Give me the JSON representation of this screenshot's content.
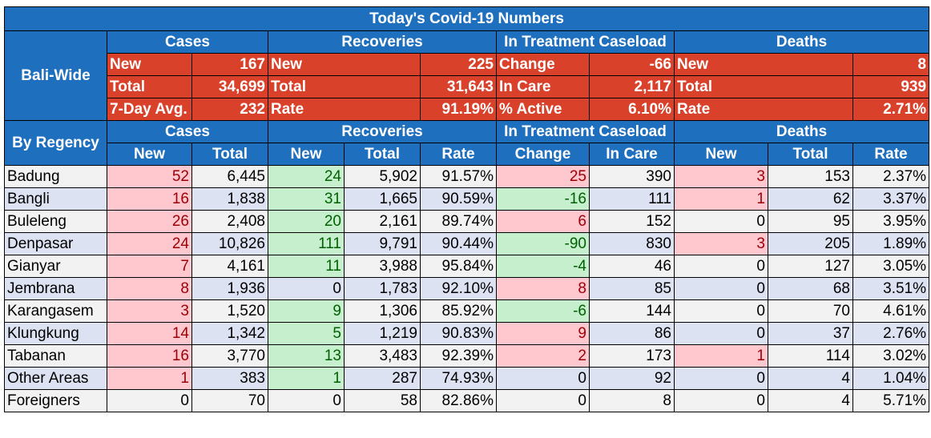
{
  "title": "Today's Covid-19 Numbers",
  "groups": {
    "cases": "Cases",
    "recoveries": "Recoveries",
    "treatment": "In Treatment Caseload",
    "deaths": "Deaths"
  },
  "bali_wide": {
    "label": "Bali-Wide",
    "rows": [
      {
        "c_lbl": "New",
        "c_val": "167",
        "r_lbl": "New",
        "r_val": "225",
        "t_lbl": "Change",
        "t_val": "-66",
        "d_lbl": "New",
        "d_val": "8"
      },
      {
        "c_lbl": "Total",
        "c_val": "34,699",
        "r_lbl": "Total",
        "r_val": "31,643",
        "t_lbl": "In Care",
        "t_val": "2,117",
        "d_lbl": "Total",
        "d_val": "939"
      },
      {
        "c_lbl": "7-Day Avg.",
        "c_val": "232",
        "r_lbl": "Rate",
        "r_val": "91.19%",
        "t_lbl": "% Active",
        "t_val": "6.10%",
        "d_lbl": "Rate",
        "d_val": "2.71%"
      }
    ]
  },
  "by_regency": {
    "label": "By Regency",
    "subheaders": {
      "c_new": "New",
      "c_total": "Total",
      "r_new": "New",
      "r_total": "Total",
      "r_rate": "Rate",
      "t_change": "Change",
      "t_incare": "In Care",
      "d_new": "New",
      "d_total": "Total",
      "d_rate": "Rate"
    },
    "rows": [
      {
        "name": "Badung",
        "c_new": "52",
        "c_total": "6,445",
        "r_new": "24",
        "r_total": "5,902",
        "r_rate": "91.57%",
        "t_change": "25",
        "t_incare": "390",
        "d_new": "3",
        "d_total": "153",
        "d_rate": "2.37%"
      },
      {
        "name": "Bangli",
        "c_new": "16",
        "c_total": "1,838",
        "r_new": "31",
        "r_total": "1,665",
        "r_rate": "90.59%",
        "t_change": "-16",
        "t_incare": "111",
        "d_new": "1",
        "d_total": "62",
        "d_rate": "3.37%"
      },
      {
        "name": "Buleleng",
        "c_new": "26",
        "c_total": "2,408",
        "r_new": "20",
        "r_total": "2,161",
        "r_rate": "89.74%",
        "t_change": "6",
        "t_incare": "152",
        "d_new": "0",
        "d_total": "95",
        "d_rate": "3.95%"
      },
      {
        "name": "Denpasar",
        "c_new": "24",
        "c_total": "10,826",
        "r_new": "111",
        "r_total": "9,791",
        "r_rate": "90.44%",
        "t_change": "-90",
        "t_incare": "830",
        "d_new": "3",
        "d_total": "205",
        "d_rate": "1.89%"
      },
      {
        "name": "Gianyar",
        "c_new": "7",
        "c_total": "4,161",
        "r_new": "11",
        "r_total": "3,988",
        "r_rate": "95.84%",
        "t_change": "-4",
        "t_incare": "46",
        "d_new": "0",
        "d_total": "127",
        "d_rate": "3.05%"
      },
      {
        "name": "Jembrana",
        "c_new": "8",
        "c_total": "1,936",
        "r_new": "0",
        "r_total": "1,783",
        "r_rate": "92.10%",
        "t_change": "8",
        "t_incare": "85",
        "d_new": "0",
        "d_total": "68",
        "d_rate": "3.51%"
      },
      {
        "name": "Karangasem",
        "c_new": "3",
        "c_total": "1,520",
        "r_new": "9",
        "r_total": "1,306",
        "r_rate": "85.92%",
        "t_change": "-6",
        "t_incare": "144",
        "d_new": "0",
        "d_total": "70",
        "d_rate": "4.61%"
      },
      {
        "name": "Klungkung",
        "c_new": "14",
        "c_total": "1,342",
        "r_new": "5",
        "r_total": "1,219",
        "r_rate": "90.83%",
        "t_change": "9",
        "t_incare": "86",
        "d_new": "0",
        "d_total": "37",
        "d_rate": "2.76%"
      },
      {
        "name": "Tabanan",
        "c_new": "16",
        "c_total": "3,770",
        "r_new": "13",
        "r_total": "3,483",
        "r_rate": "92.39%",
        "t_change": "2",
        "t_incare": "173",
        "d_new": "1",
        "d_total": "114",
        "d_rate": "3.02%"
      },
      {
        "name": "Other Areas",
        "c_new": "1",
        "c_total": "383",
        "r_new": "1",
        "r_total": "287",
        "r_rate": "74.93%",
        "t_change": "0",
        "t_incare": "92",
        "d_new": "0",
        "d_total": "4",
        "d_rate": "1.04%"
      },
      {
        "name": "Foreigners",
        "c_new": "0",
        "c_total": "70",
        "r_new": "0",
        "r_total": "58",
        "r_rate": "82.86%",
        "t_change": "0",
        "t_incare": "8",
        "d_new": "0",
        "d_total": "4",
        "d_rate": "5.71%"
      }
    ]
  },
  "colors": {
    "header_blue": "#1f6fbf",
    "summary_red": "#d9412b",
    "increase_fill": "#ffc7ce",
    "increase_text": "#9c0006",
    "good_fill": "#c6efce",
    "good_text": "#006100",
    "row_alt_a": "#f2f2f2",
    "row_alt_b": "#dde2f2"
  }
}
